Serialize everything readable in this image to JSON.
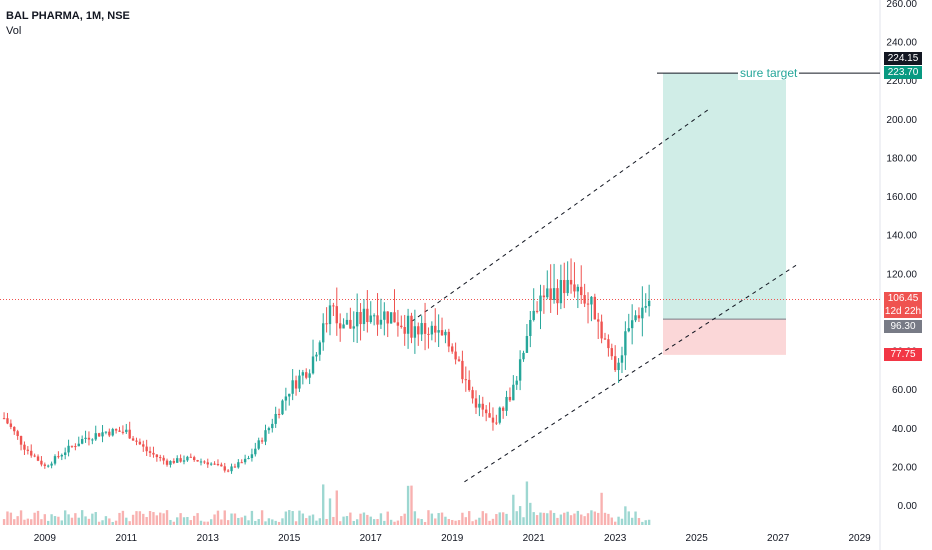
{
  "header": {
    "title": "BAL PHARMA, 1M, NSE",
    "indicator": "Vol"
  },
  "colors": {
    "up": "#26a69a",
    "down": "#ef5350",
    "target_zone": "#d0ede7",
    "stop_zone": "#fbd7d8",
    "price_line": "#ef5350"
  },
  "chart_data": {
    "type": "candlestick",
    "x_ticks": [
      "2009",
      "2011",
      "2013",
      "2015",
      "2017",
      "2019",
      "2021",
      "2023",
      "2025",
      "2027",
      "2029"
    ],
    "y_ticks": [
      "0.00",
      "20.00",
      "40.00",
      "60.00",
      "80.00",
      "100.00",
      "120.00",
      "140.00",
      "160.00",
      "180.00",
      "200.00",
      "220.00",
      "240.00",
      "260.00"
    ],
    "ylim": [
      0,
      260
    ],
    "xlim": [
      2007.9,
      2029.5
    ],
    "series": [
      {
        "x": [
          2008.0,
          2008.5,
          2009.0,
          2009.5,
          2010.0,
          2010.5,
          2011.0,
          2011.5,
          2012.0,
          2012.5,
          2013.0,
          2013.5,
          2014.0,
          2014.5,
          2015.0,
          2015.5,
          2016.0,
          2016.5,
          2017.0,
          2017.5,
          2018.0,
          2018.5,
          2019.0,
          2019.5,
          2020.0,
          2020.5,
          2021.0,
          2021.5,
          2022.0,
          2022.5,
          2023.0,
          2023.5,
          2023.85
        ],
        "close": [
          45,
          30,
          20,
          28,
          35,
          38,
          38,
          28,
          22,
          24,
          22,
          18,
          24,
          40,
          60,
          72,
          100,
          92,
          100,
          98,
          92,
          90,
          82,
          55,
          42,
          60,
          105,
          110,
          115,
          100,
          72,
          98,
          106.45
        ]
      }
    ],
    "annotations": {
      "target_label": "sure target",
      "target_price": "223.70",
      "high_price": "224.15",
      "last_price": "106.45",
      "countdown": "12d 22h",
      "entry_price": "96.30",
      "stop_price": "77.75"
    }
  }
}
